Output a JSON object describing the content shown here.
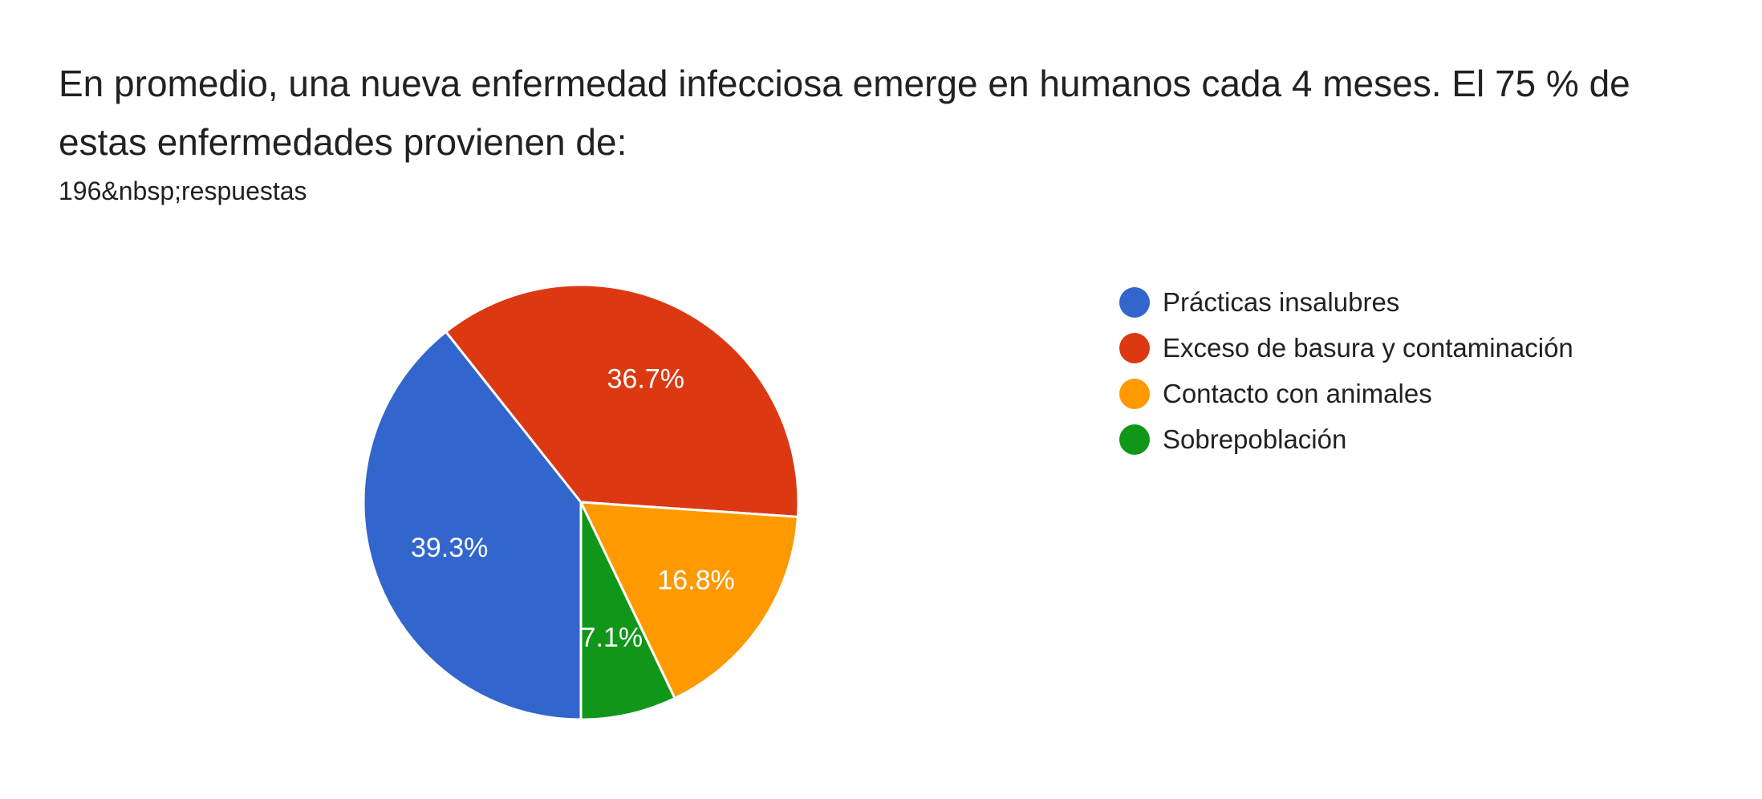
{
  "header": {
    "question": "En promedio, una nueva enfermedad infecciosa emerge en humanos cada 4 meses. El 75 % de estas enfermedades provienen de:",
    "responses": "196&nbsp;respuestas"
  },
  "chart_data": {
    "type": "pie",
    "categories": [
      "Prácticas insalubres",
      "Exceso de basura y contaminación",
      "Contacto con animales",
      "Sobrepoblación"
    ],
    "values": [
      39.3,
      36.7,
      16.8,
      7.1
    ],
    "labels": [
      "39.3%",
      "36.7%",
      "16.8%",
      "7.1%"
    ],
    "colors": [
      "#3366cc",
      "#dc3912",
      "#ff9900",
      "#109618"
    ],
    "start_angle_deg": 90,
    "direction": "clockwise",
    "legend_position": "right"
  }
}
